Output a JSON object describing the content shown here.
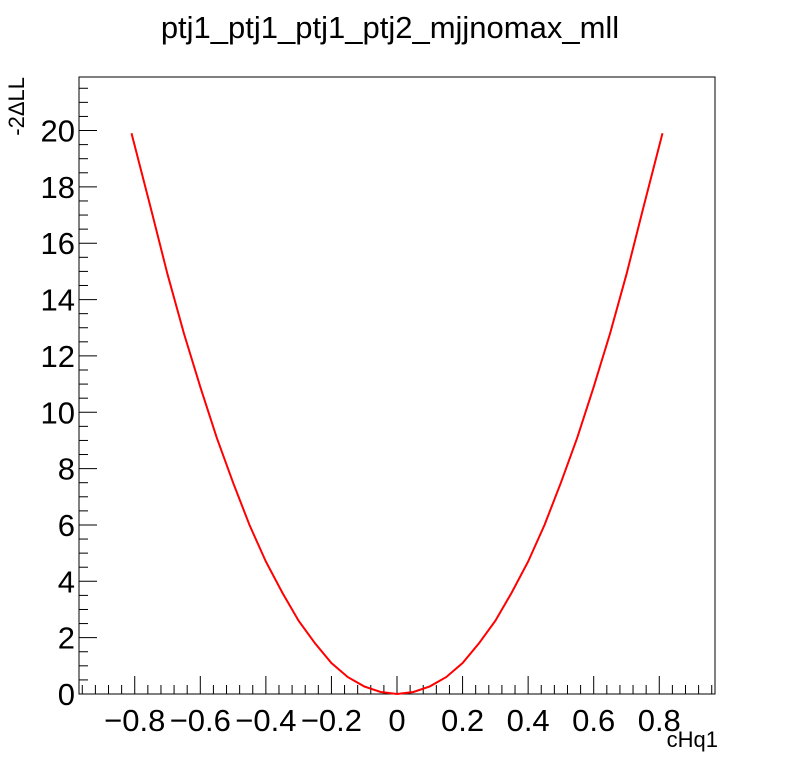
{
  "chart_data": {
    "type": "line",
    "title": "ptj1_ptj1_ptj1_ptj2_mjjnomax_mll",
    "xlabel": "cHq1",
    "ylabel": "-2ΔLL",
    "xlim": [
      -0.97,
      0.97
    ],
    "ylim": [
      0,
      21.9
    ],
    "xticks": [
      -0.8,
      -0.6,
      -0.4,
      -0.2,
      0,
      0.2,
      0.4,
      0.6,
      0.8
    ],
    "xtick_labels": [
      "−0.8",
      "−0.6",
      "−0.4",
      "−0.2",
      "0",
      "0.2",
      "0.4",
      "0.6",
      "0.8"
    ],
    "yticks": [
      0,
      2,
      4,
      6,
      8,
      10,
      12,
      14,
      16,
      18,
      20
    ],
    "ytick_labels": [
      "0",
      "2",
      "4",
      "6",
      "8",
      "10",
      "12",
      "14",
      "16",
      "18",
      "20"
    ],
    "grid": false,
    "series": [
      {
        "color": "#ff0000",
        "x": [
          -0.81,
          -0.75,
          -0.7,
          -0.65,
          -0.6,
          -0.55,
          -0.5,
          -0.45,
          -0.4,
          -0.35,
          -0.3,
          -0.25,
          -0.2,
          -0.15,
          -0.1,
          -0.05,
          0,
          0.05,
          0.1,
          0.15,
          0.2,
          0.25,
          0.3,
          0.35,
          0.4,
          0.45,
          0.5,
          0.55,
          0.6,
          0.65,
          0.7,
          0.75,
          0.81
        ],
        "y": [
          19.9,
          17.2,
          14.9,
          12.8,
          10.9,
          9.1,
          7.5,
          6.0,
          4.7,
          3.6,
          2.6,
          1.8,
          1.1,
          0.6,
          0.27,
          0.07,
          0.0,
          0.07,
          0.27,
          0.6,
          1.1,
          1.8,
          2.6,
          3.6,
          4.7,
          6.0,
          7.5,
          9.1,
          10.9,
          12.8,
          14.9,
          17.2,
          19.9
        ]
      }
    ]
  }
}
